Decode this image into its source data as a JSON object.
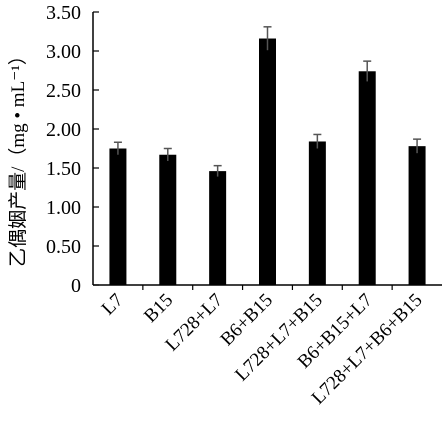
{
  "chart_data": {
    "type": "bar",
    "categories": [
      "L7",
      "B15",
      "L728+L7",
      "B6+B15",
      "L728+L7+B15",
      "B6+B15+L7",
      "L728+L7+B6+B15"
    ],
    "values": [
      1.75,
      1.67,
      1.46,
      3.16,
      1.84,
      2.74,
      1.78
    ],
    "errors": [
      0.08,
      0.08,
      0.07,
      0.15,
      0.09,
      0.13,
      0.09
    ],
    "title": "",
    "xlabel": "",
    "ylabel": "乙偶姻产量/（mg • mL⁻¹）",
    "ylim": [
      0,
      3.5
    ],
    "yticks": [
      "0",
      "0.50",
      "1.00",
      "1.50",
      "2.00",
      "2.50",
      "3.00",
      "3.50"
    ],
    "grid": false,
    "legend": "none",
    "bar_color": "#000000"
  }
}
